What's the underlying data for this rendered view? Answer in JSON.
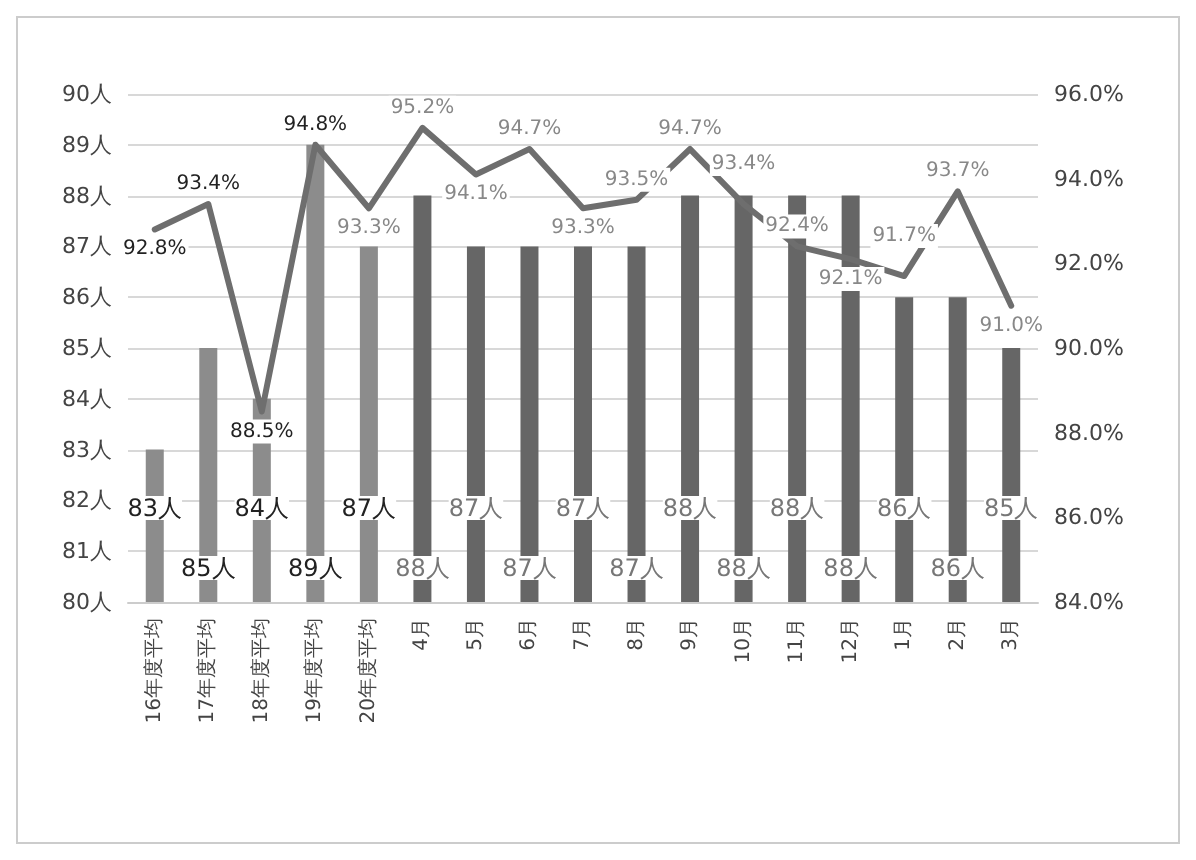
{
  "chart_data": {
    "type": "bar",
    "categories": [
      "16年度平均",
      "17年度平均",
      "18年度平均",
      "19年度平均",
      "20年度平均",
      "4月",
      "5月",
      "6月",
      "7月",
      "8月",
      "9月",
      "10月",
      "11月",
      "12月",
      "1月",
      "2月",
      "3月"
    ],
    "series": [
      {
        "colors": [
          "#8c8c8c",
          "#8c8c8c",
          "#8c8c8c",
          "#8c8c8c",
          "#8c8c8c",
          "#666666",
          "#666666",
          "#666666",
          "#666666",
          "#666666",
          "#666666",
          "#666666",
          "#666666",
          "#666666",
          "#666666",
          "#666666",
          "#666666"
        ],
        "values": [
          83,
          85,
          84,
          89,
          87,
          88,
          87,
          87,
          87,
          87,
          88,
          88,
          88,
          88,
          86,
          86,
          85
        ],
        "value_labels": [
          "83人",
          "85人",
          "84人",
          "89人",
          "87人",
          "88人",
          "87人",
          "87人",
          "87人",
          "87人",
          "88人",
          "88人",
          "88人",
          "88人",
          "86人",
          "86人",
          "85人"
        ]
      },
      {
        "type": "line",
        "axis": "y2",
        "color": "#6e6e6e",
        "values": [
          92.8,
          93.4,
          88.5,
          94.8,
          93.3,
          95.2,
          94.1,
          94.7,
          93.3,
          93.5,
          94.7,
          93.4,
          92.4,
          92.1,
          91.7,
          93.7,
          91.0
        ],
        "value_labels": [
          "92.8%",
          "93.4%",
          "88.5%",
          "94.8%",
          "93.3%",
          "95.2%",
          "94.1%",
          "94.7%",
          "93.3%",
          "93.5%",
          "94.7%",
          "93.4%",
          "92.4%",
          "92.1%",
          "91.7%",
          "93.7%",
          "91.0%"
        ]
      }
    ],
    "ylim": [
      80,
      90
    ],
    "yticks": [
      {
        "value": 80,
        "label": "80人"
      },
      {
        "value": 81,
        "label": "81人"
      },
      {
        "value": 82,
        "label": "82人"
      },
      {
        "value": 83,
        "label": "83人"
      },
      {
        "value": 84,
        "label": "84人"
      },
      {
        "value": 85,
        "label": "85人"
      },
      {
        "value": 86,
        "label": "86人"
      },
      {
        "value": 87,
        "label": "87人"
      },
      {
        "value": 88,
        "label": "88人"
      },
      {
        "value": 89,
        "label": "89人"
      },
      {
        "value": 90,
        "label": "90人"
      }
    ],
    "y2lim": [
      84,
      96
    ],
    "y2ticks": [
      {
        "value": 84,
        "label": "84.0%"
      },
      {
        "value": 86,
        "label": "86.0%"
      },
      {
        "value": 88,
        "label": "88.0%"
      },
      {
        "value": 90,
        "label": "90.0%"
      },
      {
        "value": 92,
        "label": "92.0%"
      },
      {
        "value": 94,
        "label": "94.0%"
      },
      {
        "value": 96,
        "label": "96.0%"
      }
    ],
    "grid": "y",
    "marker": "none",
    "line_style": "solid"
  }
}
